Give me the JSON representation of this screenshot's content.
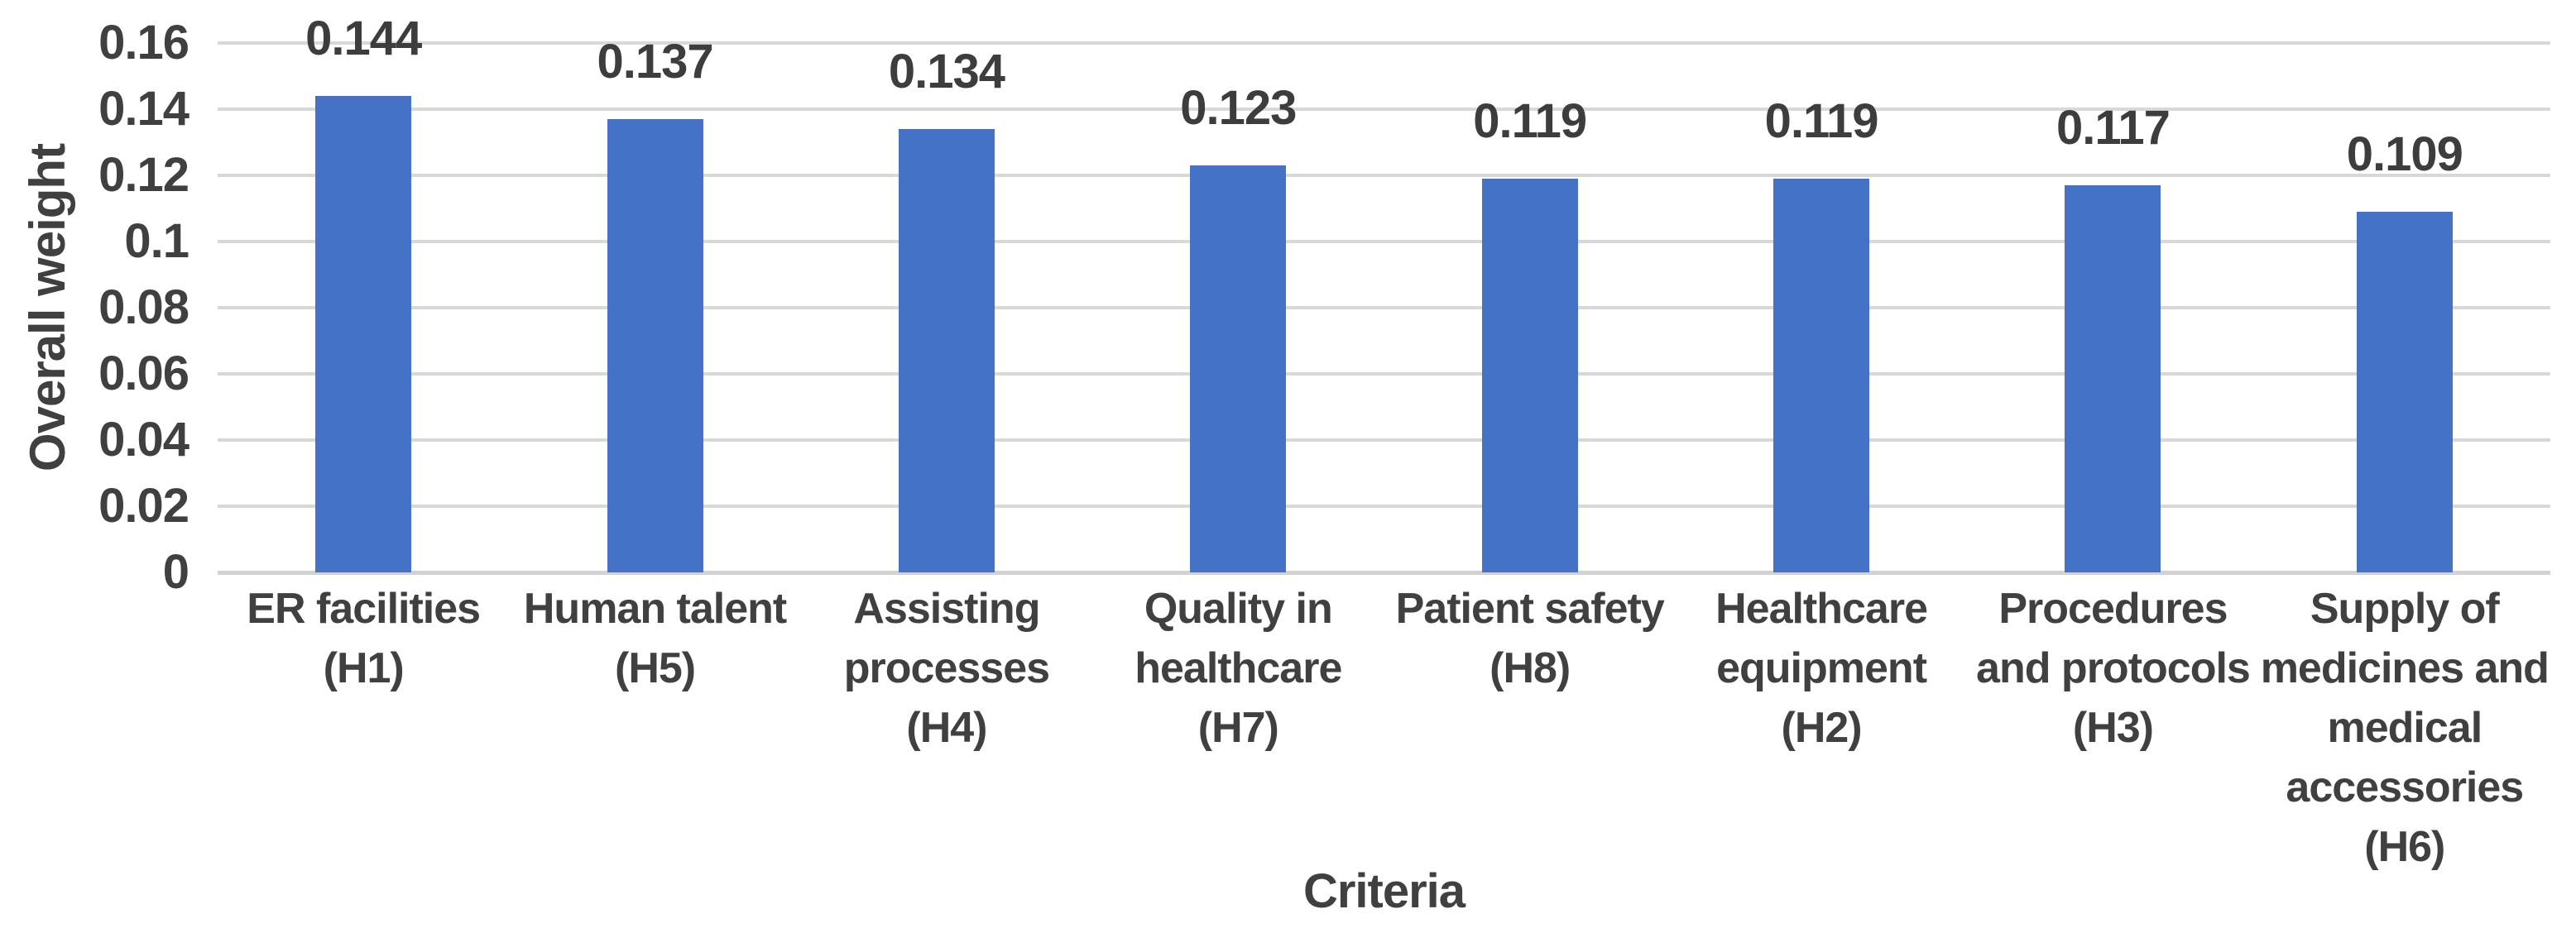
{
  "chart_data": {
    "type": "bar",
    "title": "",
    "xlabel": "Criteria",
    "ylabel": "Overall weight",
    "bar_color": "#4472C4",
    "gridline_color": "#D9D9D9",
    "text_color": "#404040",
    "grid": true,
    "legend": false,
    "ylim": [
      0,
      0.16
    ],
    "yticks": [
      0,
      0.02,
      0.04,
      0.06,
      0.08,
      0.1,
      0.12,
      0.14,
      0.16
    ],
    "ytick_labels": [
      "0",
      "0.02",
      "0.04",
      "0.06",
      "0.08",
      "0.1",
      "0.12",
      "0.14",
      "0.16"
    ],
    "categories": [
      "ER facilities (H1)",
      "Human talent (H5)",
      "Assisting processes (H4)",
      "Quality in healthcare (H7)",
      "Patient safety (H8)",
      "Healthcare equipment (H2)",
      "Procedures and protocols (H3)",
      "Supply of medicines and medical accessories (H6)"
    ],
    "category_lines": [
      [
        "ER facilities",
        "(H1)"
      ],
      [
        "Human talent",
        "(H5)"
      ],
      [
        "Assisting",
        "processes",
        "(H4)"
      ],
      [
        "Quality in",
        "healthcare",
        "(H7)"
      ],
      [
        "Patient safety",
        "(H8)"
      ],
      [
        "Healthcare",
        "equipment",
        "(H2)"
      ],
      [
        "Procedures",
        "and protocols",
        "(H3)"
      ],
      [
        "Supply of",
        "medicines and",
        "medical",
        "accessories",
        "(H6)"
      ]
    ],
    "values": [
      0.144,
      0.137,
      0.134,
      0.123,
      0.119,
      0.119,
      0.117,
      0.109
    ],
    "data_labels": [
      "0.144",
      "0.137",
      "0.134",
      "0.123",
      "0.119",
      "0.119",
      "0.117",
      "0.109"
    ]
  }
}
